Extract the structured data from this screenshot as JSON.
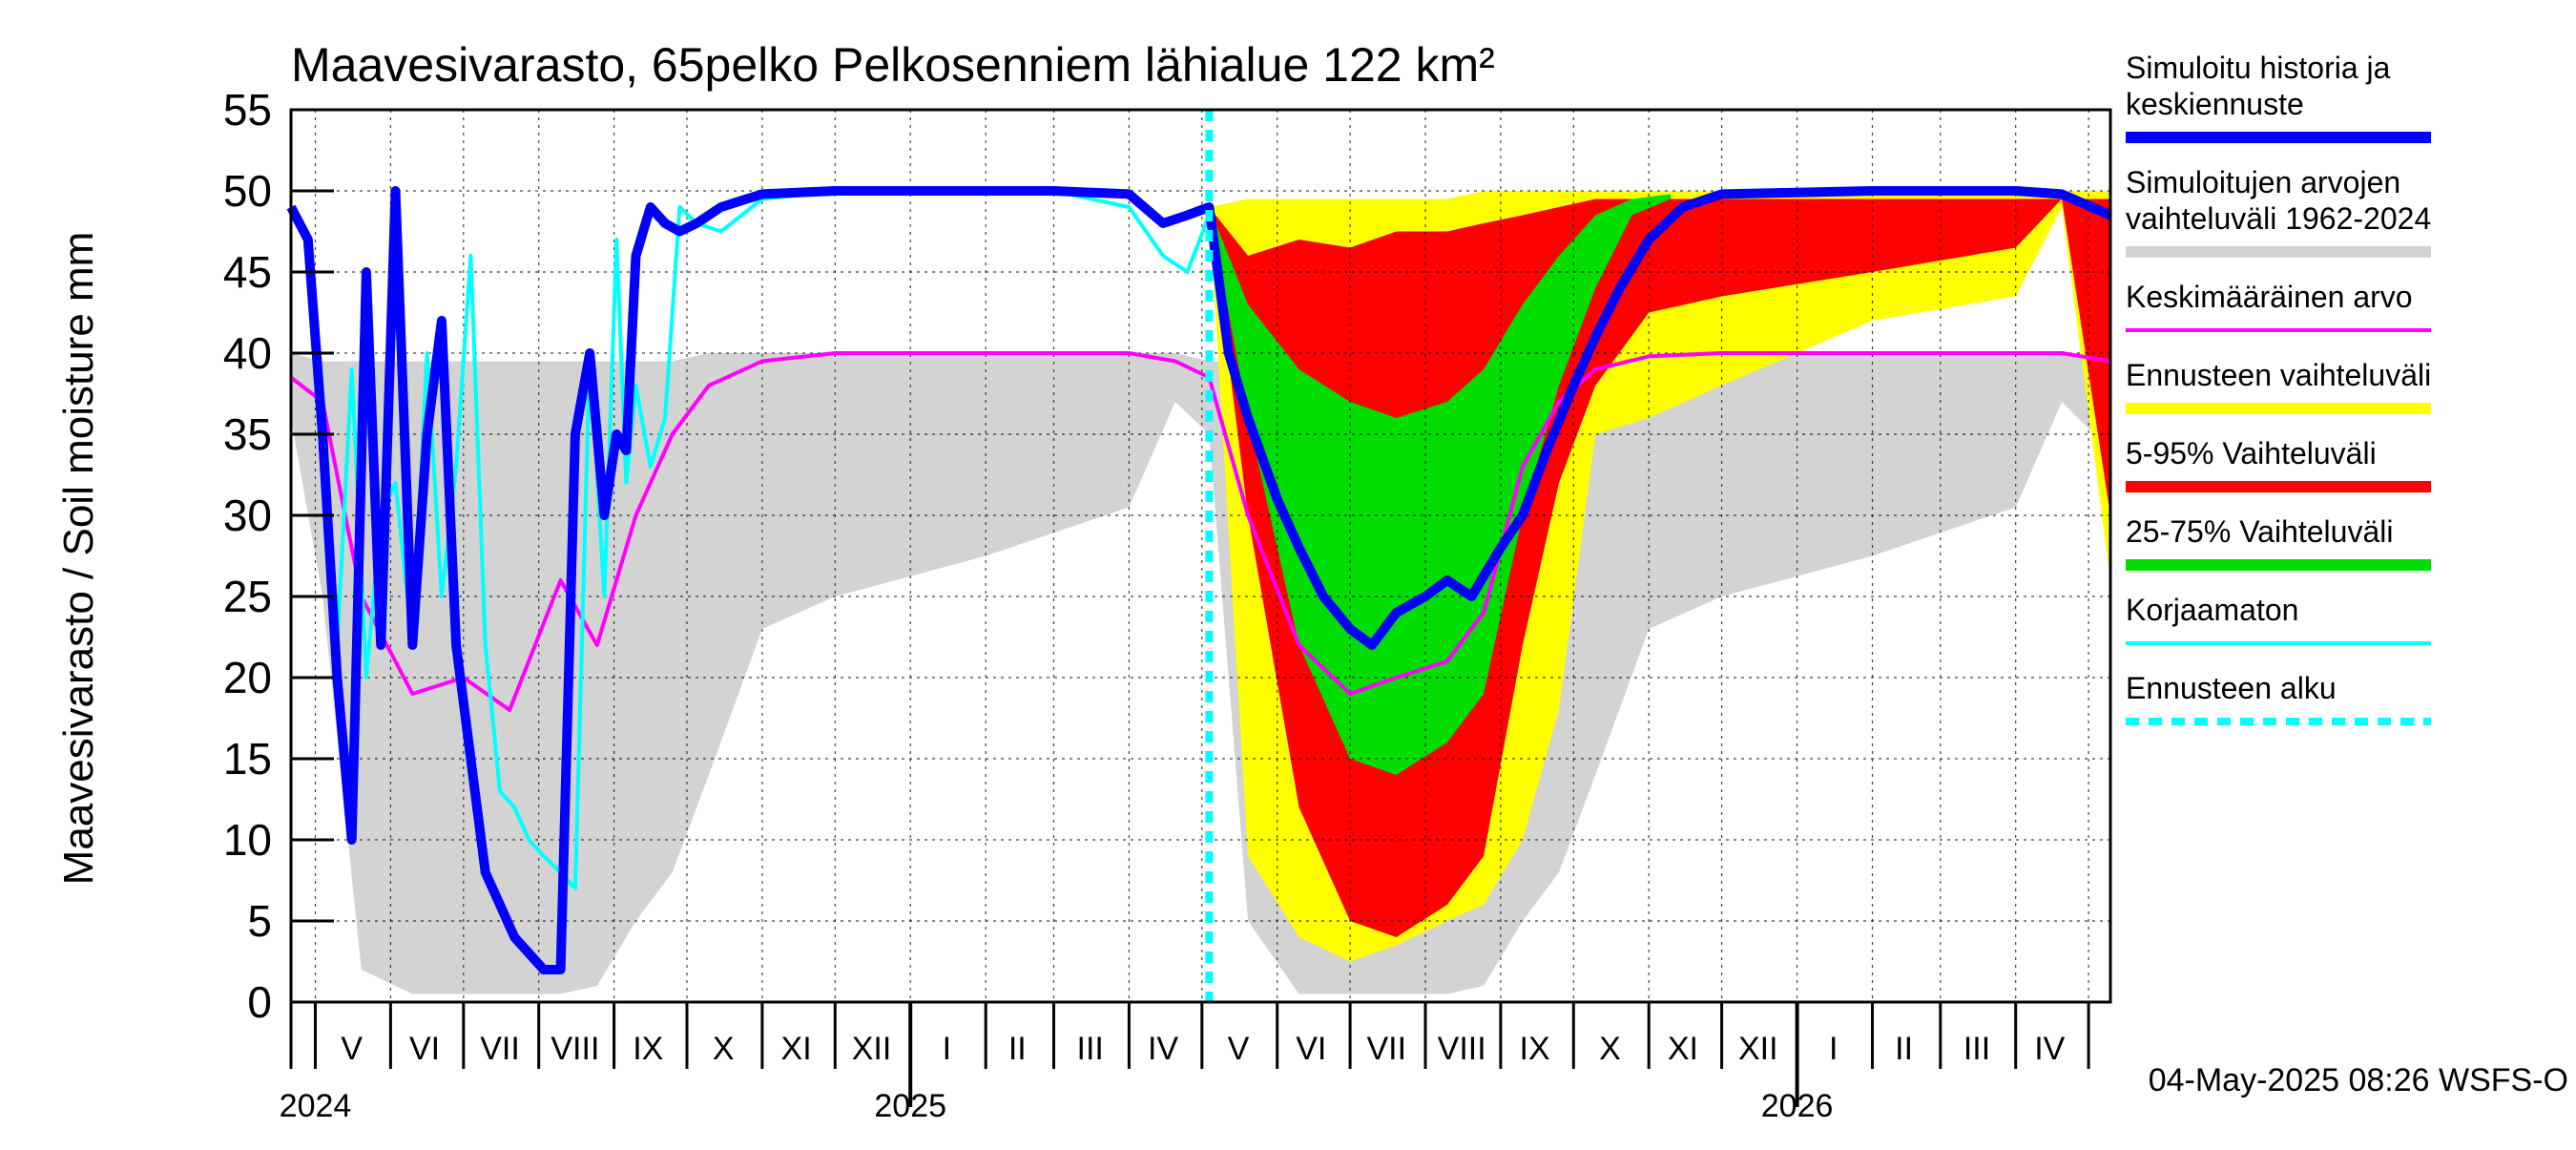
{
  "chart_data": {
    "type": "area",
    "title": "Maavesivarasto, 65pelko Pelkosenniem lähialue 122 km²",
    "ylabel": "Maavesivarasto / Soil moisture   mm",
    "ylim": [
      0,
      55
    ],
    "y_ticks": [
      0,
      5,
      10,
      15,
      20,
      25,
      30,
      35,
      40,
      45,
      50,
      55
    ],
    "x_range": [
      "2024-04-21",
      "2026-05-10"
    ],
    "x_month_labels": [
      {
        "label": "V",
        "date": "2024-05-16"
      },
      {
        "label": "VI",
        "date": "2024-06-15"
      },
      {
        "label": "VII",
        "date": "2024-07-16"
      },
      {
        "label": "VIII",
        "date": "2024-08-16"
      },
      {
        "label": "IX",
        "date": "2024-09-15"
      },
      {
        "label": "X",
        "date": "2024-10-16"
      },
      {
        "label": "XI",
        "date": "2024-11-15"
      },
      {
        "label": "XII",
        "date": "2024-12-16"
      },
      {
        "label": "I",
        "date": "2025-01-16"
      },
      {
        "label": "II",
        "date": "2025-02-14"
      },
      {
        "label": "III",
        "date": "2025-03-16"
      },
      {
        "label": "IV",
        "date": "2025-04-15"
      },
      {
        "label": "V",
        "date": "2025-05-16"
      },
      {
        "label": "VI",
        "date": "2025-06-15"
      },
      {
        "label": "VII",
        "date": "2025-07-16"
      },
      {
        "label": "VIII",
        "date": "2025-08-16"
      },
      {
        "label": "IX",
        "date": "2025-09-15"
      },
      {
        "label": "X",
        "date": "2025-10-16"
      },
      {
        "label": "XI",
        "date": "2025-11-15"
      },
      {
        "label": "XII",
        "date": "2025-12-16"
      },
      {
        "label": "I",
        "date": "2026-01-16"
      },
      {
        "label": "II",
        "date": "2026-02-14"
      },
      {
        "label": "III",
        "date": "2026-03-16"
      },
      {
        "label": "IV",
        "date": "2026-04-15"
      }
    ],
    "x_year_labels": [
      {
        "label": "2024",
        "date": "2024-05-01"
      },
      {
        "label": "2025",
        "date": "2025-01-01"
      },
      {
        "label": "2026",
        "date": "2026-01-01"
      }
    ],
    "forecast_start": "2025-05-04",
    "grid": true,
    "legend_position": "right",
    "footer": "04-May-2025 08:26 WSFS-O",
    "series": [
      {
        "name": "Simuloitujen arvojen vaihteluväli 1962-2024",
        "color": "#d3d3d3",
        "kind": "band",
        "x": [
          "2024-04-21",
          "2024-05-04",
          "2024-05-20",
          "2024-06-10",
          "2024-07-01",
          "2024-07-20",
          "2024-08-10",
          "2024-08-25",
          "2024-09-10",
          "2024-09-25",
          "2024-10-10",
          "2024-11-01",
          "2024-12-01",
          "2025-02-01",
          "2025-04-01",
          "2025-04-20",
          "2025-05-04",
          "2025-05-20",
          "2025-06-10",
          "2025-07-01",
          "2025-07-20",
          "2025-08-10",
          "2025-08-25",
          "2025-09-10",
          "2025-09-25",
          "2025-10-10",
          "2025-11-01",
          "2025-12-01",
          "2026-02-01",
          "2026-04-01",
          "2026-04-20",
          "2026-05-10"
        ],
        "low": [
          36,
          25,
          2,
          0.5,
          0.5,
          0.5,
          0.5,
          1,
          5,
          8,
          14,
          23,
          25,
          27.5,
          30.5,
          37,
          35,
          5,
          0.5,
          0.5,
          0.5,
          0.5,
          1,
          5,
          8,
          14,
          23,
          25,
          27.5,
          30.5,
          37,
          34
        ],
        "high": [
          40,
          39.5,
          39.5,
          39.5,
          39.5,
          39.5,
          39.5,
          39.5,
          39.5,
          39.5,
          40,
          40,
          40,
          40,
          40,
          40,
          39.5,
          39.5,
          39.5,
          39.5,
          39.5,
          39.5,
          39.5,
          39.5,
          39.5,
          40,
          40,
          40,
          40,
          40,
          40,
          40
        ]
      },
      {
        "name": "Ennusteen vaihteluväli",
        "color": "#ffff00",
        "kind": "band",
        "x": [
          "2025-05-04",
          "2025-05-20",
          "2025-06-10",
          "2025-07-01",
          "2025-07-20",
          "2025-08-10",
          "2025-08-25",
          "2025-09-10",
          "2025-09-25",
          "2025-10-10",
          "2025-11-01",
          "2025-12-01",
          "2026-02-01",
          "2026-04-01",
          "2026-04-20",
          "2026-05-10"
        ],
        "low": [
          49,
          9,
          4,
          2.5,
          3.5,
          5,
          6,
          10,
          18,
          35,
          36,
          38,
          42,
          43.5,
          49,
          26
        ],
        "high": [
          49,
          49.5,
          49.5,
          49.5,
          49.5,
          49.5,
          50,
          50,
          50,
          50,
          50,
          50,
          50,
          50,
          50,
          50
        ]
      },
      {
        "name": "5-95% Vaihteluväli",
        "color": "#ff0000",
        "kind": "band",
        "x": [
          "2025-05-04",
          "2025-05-20",
          "2025-06-10",
          "2025-07-01",
          "2025-07-20",
          "2025-08-10",
          "2025-08-25",
          "2025-09-10",
          "2025-09-25",
          "2025-10-10",
          "2025-11-01",
          "2025-12-01",
          "2026-02-01",
          "2026-04-01",
          "2026-04-20",
          "2026-05-10"
        ],
        "low": [
          49,
          30,
          12,
          5,
          4,
          6,
          9,
          22,
          32,
          38,
          42.5,
          43.5,
          45,
          46.5,
          49.5,
          30
        ],
        "high": [
          49,
          46,
          47,
          46.5,
          47.5,
          47.5,
          48,
          48.5,
          49,
          49.5,
          49.5,
          49.5,
          49.5,
          49.5,
          49.5,
          49.5
        ]
      },
      {
        "name": "25-75% Vaihteluväli",
        "color": "#00dd00",
        "kind": "band",
        "x": [
          "2025-05-04",
          "2025-05-20",
          "2025-06-10",
          "2025-07-01",
          "2025-07-20",
          "2025-08-10",
          "2025-08-25",
          "2025-09-10",
          "2025-09-25",
          "2025-10-10",
          "2025-10-25",
          "2025-11-10"
        ],
        "low": [
          49,
          36,
          22,
          15,
          14,
          16,
          19,
          30,
          38,
          44,
          48.5,
          49.5
        ],
        "high": [
          49,
          43,
          39,
          37,
          36,
          37,
          39,
          43,
          46,
          48.5,
          49.5,
          49.8
        ]
      },
      {
        "name": "Keskimääräinen arvo",
        "color": "#ff00ff",
        "kind": "line",
        "x": [
          "2024-04-21",
          "2024-05-04",
          "2024-05-20",
          "2024-06-10",
          "2024-07-01",
          "2024-07-20",
          "2024-08-10",
          "2024-08-25",
          "2024-09-10",
          "2024-09-25",
          "2024-10-10",
          "2024-11-01",
          "2024-12-01",
          "2025-02-01",
          "2025-04-01",
          "2025-04-20",
          "2025-05-04",
          "2025-05-20",
          "2025-06-10",
          "2025-07-01",
          "2025-07-20",
          "2025-08-10",
          "2025-08-25",
          "2025-09-10",
          "2025-09-25",
          "2025-10-10",
          "2025-11-01",
          "2025-12-01",
          "2026-02-01",
          "2026-04-01",
          "2026-04-20",
          "2026-05-10"
        ],
        "y": [
          38.5,
          37,
          25,
          19,
          20,
          18,
          26,
          22,
          30,
          35,
          38,
          39.5,
          40,
          40,
          40,
          39.5,
          38.5,
          30,
          22,
          19,
          20,
          21,
          24,
          33,
          37,
          39,
          39.8,
          40,
          40,
          40,
          40,
          39.5
        ]
      },
      {
        "name": "Korjaamaton",
        "color": "#00ffff",
        "kind": "line",
        "x": [
          "2024-04-21",
          "2024-04-28",
          "2024-05-04",
          "2024-05-10",
          "2024-05-16",
          "2024-05-22",
          "2024-05-28",
          "2024-06-03",
          "2024-06-10",
          "2024-06-16",
          "2024-06-22",
          "2024-06-28",
          "2024-07-04",
          "2024-07-10",
          "2024-07-16",
          "2024-07-22",
          "2024-07-28",
          "2024-08-03",
          "2024-08-10",
          "2024-08-16",
          "2024-08-22",
          "2024-08-28",
          "2024-09-02",
          "2024-09-06",
          "2024-09-10",
          "2024-09-16",
          "2024-09-22",
          "2024-09-28",
          "2024-10-05",
          "2024-10-15",
          "2024-11-01",
          "2024-12-01",
          "2025-03-01",
          "2025-04-01",
          "2025-04-15",
          "2025-04-25",
          "2025-05-04"
        ],
        "y": [
          49,
          47,
          35,
          22,
          39,
          20,
          30,
          32,
          22,
          40,
          25,
          33,
          46,
          22,
          13,
          12,
          10,
          9,
          8,
          7,
          40,
          25,
          47,
          32,
          38,
          33,
          36,
          49,
          48,
          47.5,
          49.5,
          50,
          50,
          49,
          46,
          45,
          48.5
        ]
      },
      {
        "name": "Simuloitu historia ja keskiennuste",
        "color": "#0000ff",
        "kind": "line",
        "x": [
          "2024-04-21",
          "2024-04-28",
          "2024-05-04",
          "2024-05-10",
          "2024-05-16",
          "2024-05-22",
          "2024-05-28",
          "2024-06-03",
          "2024-06-10",
          "2024-06-16",
          "2024-06-22",
          "2024-06-28",
          "2024-07-04",
          "2024-07-10",
          "2024-07-16",
          "2024-07-22",
          "2024-07-28",
          "2024-08-03",
          "2024-08-10",
          "2024-08-16",
          "2024-08-22",
          "2024-08-28",
          "2024-09-02",
          "2024-09-06",
          "2024-09-10",
          "2024-09-16",
          "2024-09-22",
          "2024-09-28",
          "2024-10-05",
          "2024-10-15",
          "2024-11-01",
          "2024-12-01",
          "2025-03-01",
          "2025-04-01",
          "2025-04-15",
          "2025-04-25",
          "2025-05-04",
          "2025-05-12",
          "2025-05-20",
          "2025-06-01",
          "2025-06-10",
          "2025-06-20",
          "2025-07-01",
          "2025-07-10",
          "2025-07-20",
          "2025-08-01",
          "2025-08-10",
          "2025-08-20",
          "2025-09-01",
          "2025-09-10",
          "2025-09-20",
          "2025-10-01",
          "2025-10-10",
          "2025-10-20",
          "2025-11-01",
          "2025-11-15",
          "2025-12-01",
          "2026-02-01",
          "2026-04-01",
          "2026-04-20",
          "2026-05-10"
        ],
        "y": [
          49,
          47,
          35,
          20,
          10,
          45,
          22,
          50,
          22,
          35,
          42,
          22,
          15,
          8,
          6,
          4,
          3,
          2,
          2,
          35,
          40,
          30,
          35,
          34,
          46,
          49,
          48,
          47.5,
          48,
          49,
          49.8,
          50,
          50,
          49.8,
          48,
          48.5,
          49,
          40,
          36,
          31,
          28,
          25,
          23,
          22,
          24,
          25,
          26,
          25,
          28,
          30,
          34,
          38,
          41,
          44,
          47,
          49,
          49.8,
          50,
          50,
          49.8,
          48.5
        ]
      }
    ]
  },
  "legend": [
    {
      "label": "Simuloitu historia ja keskiennuste",
      "color": "#0000ff",
      "style": "thick"
    },
    {
      "label": "Simuloitujen arvojen vaihteluväli 1962-2024",
      "color": "#d3d3d3",
      "style": "thick"
    },
    {
      "label": "Keskimääräinen arvo",
      "color": "#ff00ff",
      "style": "thin"
    },
    {
      "label": "Ennusteen vaihteluväli",
      "color": "#ffff00",
      "style": "thick"
    },
    {
      "label": "5-95% Vaihteluväli",
      "color": "#ff0000",
      "style": "thick"
    },
    {
      "label": "25-75% Vaihteluväli",
      "color": "#00dd00",
      "style": "thick"
    },
    {
      "label": "Korjaamaton",
      "color": "#00ffff",
      "style": "thin"
    },
    {
      "label": "Ennusteen alku",
      "color": "#00ffff",
      "style": "dashed"
    }
  ]
}
